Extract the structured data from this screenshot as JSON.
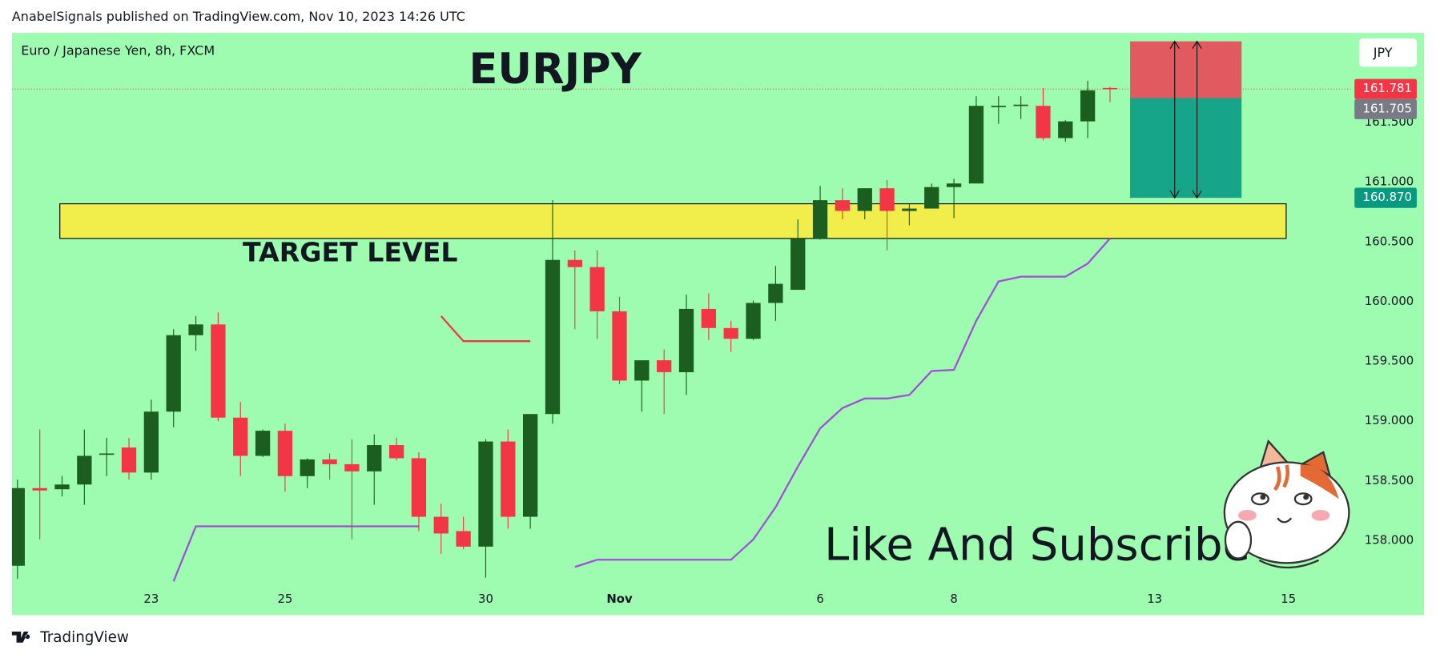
{
  "header": "AnabelSignals published on TradingView.com, Nov 10, 2023 14:26 UTC",
  "footer": "TradingView",
  "chart_data": {
    "type": "candlestick",
    "symbol": "Euro / Japanese Yen, 8h, FXCM",
    "title": "EURJPY",
    "currency": "JPY",
    "annotation": "Like And Subscribe",
    "x": [
      0,
      1,
      2,
      3,
      4,
      5,
      6,
      7,
      8,
      9,
      10,
      11,
      12,
      13,
      14,
      15,
      16,
      17,
      18,
      19,
      20,
      21,
      22,
      23,
      24,
      25,
      26,
      27,
      28,
      29,
      30,
      31,
      32,
      33,
      34,
      35,
      36,
      37,
      38,
      39,
      40,
      41,
      42,
      43,
      44,
      45,
      46,
      47,
      48,
      49
    ],
    "open": [
      157.79,
      158.44,
      158.43,
      158.47,
      158.72,
      158.78,
      158.57,
      159.08,
      159.72,
      159.81,
      159.03,
      158.71,
      158.92,
      158.54,
      158.68,
      158.64,
      158.58,
      158.8,
      158.69,
      158.2,
      158.08,
      157.95,
      158.83,
      158.2,
      159.06,
      160.35,
      160.29,
      159.92,
      159.34,
      159.51,
      159.41,
      159.94,
      159.78,
      159.69,
      159.99,
      160.1,
      160.53,
      160.85,
      160.76,
      160.95,
      160.76,
      160.78,
      160.96,
      160.99,
      161.63,
      161.64,
      161.64,
      161.37,
      161.51,
      161.79
    ],
    "high": [
      158.51,
      158.93,
      158.54,
      158.93,
      158.86,
      158.86,
      159.18,
      159.77,
      159.88,
      159.91,
      159.16,
      158.93,
      158.98,
      158.69,
      158.73,
      158.85,
      158.89,
      158.86,
      158.74,
      158.31,
      158.2,
      158.85,
      158.93,
      159.06,
      160.85,
      160.43,
      160.43,
      160.04,
      159.51,
      159.6,
      160.06,
      160.07,
      159.84,
      160.01,
      160.3,
      160.69,
      160.97,
      160.95,
      160.95,
      161.02,
      160.82,
      160.99,
      161.03,
      161.72,
      161.72,
      161.72,
      161.79,
      161.52,
      161.85,
      161.8
    ],
    "low": [
      157.68,
      158.01,
      158.37,
      158.3,
      158.54,
      158.51,
      158.51,
      158.95,
      159.59,
      159.0,
      158.54,
      158.7,
      158.41,
      158.44,
      158.51,
      158.01,
      158.3,
      158.67,
      158.08,
      157.89,
      157.93,
      157.69,
      158.1,
      158.1,
      158.98,
      159.77,
      159.69,
      159.31,
      159.08,
      159.06,
      159.22,
      159.68,
      159.58,
      159.68,
      159.84,
      160.1,
      160.52,
      160.69,
      160.69,
      160.43,
      160.64,
      160.78,
      160.7,
      160.99,
      161.49,
      161.53,
      161.35,
      161.34,
      161.37,
      161.67
    ],
    "close": [
      158.44,
      158.42,
      158.47,
      158.71,
      158.73,
      158.57,
      159.08,
      159.72,
      159.81,
      159.03,
      158.71,
      158.92,
      158.54,
      158.68,
      158.64,
      158.58,
      158.8,
      158.69,
      158.2,
      158.06,
      157.95,
      158.83,
      158.2,
      159.06,
      160.35,
      160.29,
      159.92,
      159.34,
      159.51,
      159.41,
      159.94,
      159.78,
      159.69,
      159.99,
      160.15,
      160.53,
      160.85,
      160.76,
      160.95,
      160.76,
      160.78,
      160.96,
      160.99,
      161.64,
      161.64,
      161.65,
      161.37,
      161.51,
      161.77,
      161.781
    ],
    "up_color": "#1b5e20",
    "down_color": "#f23645",
    "lines": [
      {
        "color": "#a04fd6",
        "values": [
          null,
          null,
          null,
          null,
          null,
          null,
          null,
          157.66,
          158.12,
          158.12,
          158.12,
          158.12,
          158.12,
          158.12,
          158.12,
          158.12,
          158.12,
          158.12,
          158.12,
          null,
          null,
          null,
          null,
          null,
          null,
          157.78,
          157.84,
          157.84,
          157.84,
          157.84,
          157.84,
          157.84,
          157.84,
          158.01,
          158.28,
          158.62,
          158.94,
          159.11,
          159.19,
          159.19,
          159.22,
          159.42,
          159.43,
          159.84,
          160.17,
          160.21,
          160.21,
          160.21,
          160.32,
          160.53
        ]
      },
      {
        "color": "#f23645",
        "values": [
          null,
          null,
          null,
          null,
          null,
          null,
          null,
          null,
          null,
          null,
          null,
          null,
          null,
          null,
          null,
          null,
          null,
          null,
          null,
          159.88,
          159.67,
          159.67,
          159.67,
          159.67,
          null,
          null,
          null,
          null,
          null,
          null,
          null,
          null,
          null,
          null,
          null,
          null,
          null,
          null,
          null,
          null,
          null,
          null,
          null,
          null,
          null,
          null,
          null,
          null,
          null,
          null
        ]
      }
    ],
    "zone": {
      "label": "TARGET LEVEL",
      "color": "#ffeb3b",
      "xlim": [
        1.9,
        56.9
      ],
      "ylim": [
        160.53,
        160.82
      ]
    },
    "position": {
      "xlim": [
        49.9,
        54.9
      ],
      "stop": 162.18,
      "entry": 161.705,
      "target": 160.87,
      "stop_color": "#e15a5f",
      "target_color": "#17a589"
    },
    "last_price": 161.781,
    "price_labels": [
      {
        "value": 161.781,
        "label": "161.781",
        "color": "#f23645"
      },
      {
        "value": 161.705,
        "label": "161.705",
        "color": "#787b86"
      },
      {
        "value": 160.87,
        "label": "160.870",
        "color": "#089981"
      }
    ],
    "xlim": [
      -0.25,
      59.8
    ],
    "ylim": [
      157.66,
      162.25
    ],
    "xticks": [
      {
        "value": 6,
        "label": "23"
      },
      {
        "value": 12,
        "label": "25"
      },
      {
        "value": 21,
        "label": "30"
      },
      {
        "value": 27,
        "label": "Nov"
      },
      {
        "value": 36,
        "label": "6"
      },
      {
        "value": 42,
        "label": "8"
      },
      {
        "value": 51,
        "label": "13"
      },
      {
        "value": 57,
        "label": "15"
      }
    ],
    "yticks": [
      {
        "value": 158,
        "label": "158.000"
      },
      {
        "value": 158.5,
        "label": "158.500"
      },
      {
        "value": 159,
        "label": "159.000"
      },
      {
        "value": 159.5,
        "label": "159.500"
      },
      {
        "value": 160,
        "label": "160.000"
      },
      {
        "value": 160.5,
        "label": "160.500"
      },
      {
        "value": 161,
        "label": "161.000"
      },
      {
        "value": 161.5,
        "label": "161.500"
      }
    ]
  }
}
